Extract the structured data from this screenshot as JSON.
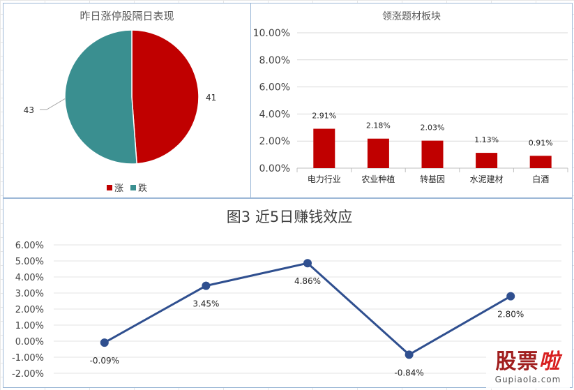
{
  "colors": {
    "rise": "#c00000",
    "fall": "#3a8f90",
    "bar": "#c00000",
    "line": "#2f4f8f",
    "grid": "#d9d9d9",
    "axis_text": "#404040"
  },
  "watermark": {
    "text_main": "股票",
    "text_accent": "啦",
    "url": "Gupiaola.com"
  },
  "chart_data": [
    {
      "type": "pie",
      "title": "昨日涨停股隔日表现",
      "slices": [
        {
          "name": "涨",
          "value": 41,
          "color": "#c00000"
        },
        {
          "name": "跌",
          "value": 43,
          "color": "#3a8f90"
        }
      ],
      "labels": [
        "41",
        "43"
      ],
      "legend_position": "bottom"
    },
    {
      "type": "bar",
      "title": "领涨题材板块",
      "categories": [
        "电力行业",
        "农业种植",
        "转基因",
        "水泥建材",
        "白酒"
      ],
      "values": [
        2.91,
        2.18,
        2.03,
        1.13,
        0.91
      ],
      "value_labels": [
        "2.91%",
        "2.18%",
        "2.03%",
        "1.13%",
        "0.91%"
      ],
      "ylim": [
        0,
        10
      ],
      "yticks": [
        "0.00%",
        "2.00%",
        "4.00%",
        "6.00%",
        "8.00%",
        "10.00%"
      ],
      "grid": true
    },
    {
      "type": "line",
      "title": "图3 近5日赚钱效应",
      "values": [
        -0.09,
        3.45,
        4.86,
        -0.84,
        2.8
      ],
      "value_labels": [
        "-0.09%",
        "3.45%",
        "4.86%",
        "-0.84%",
        "2.80%"
      ],
      "ylim": [
        -2,
        6
      ],
      "yticks": [
        "6.00%",
        "5.00%",
        "4.00%",
        "3.00%",
        "2.00%",
        "1.00%",
        "0.00%",
        "-1.00%",
        "-2.00%"
      ],
      "grid": true
    }
  ]
}
